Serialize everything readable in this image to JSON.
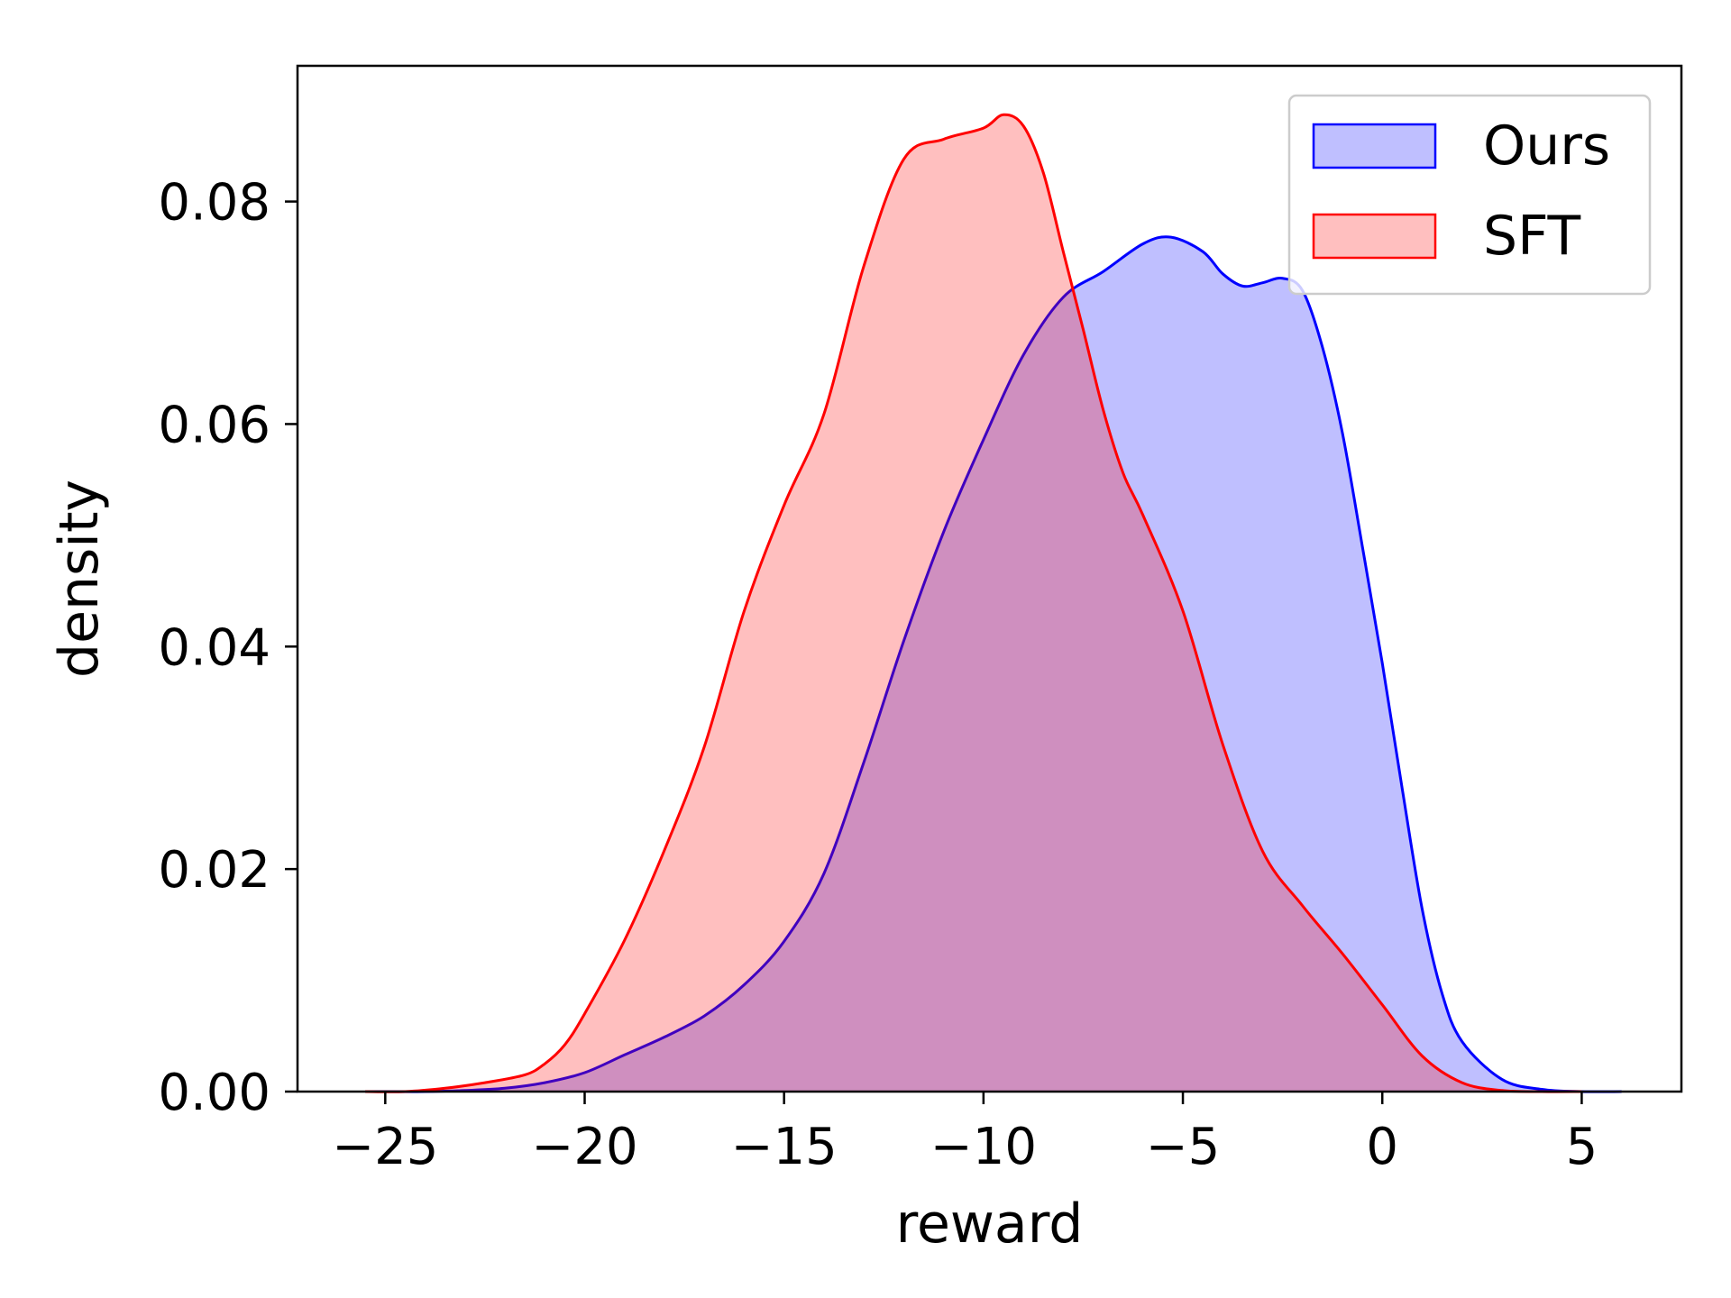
{
  "chart_data": {
    "type": "area",
    "title": "",
    "xlabel": "reward",
    "ylabel": "density",
    "xlim": [
      -27.2,
      7.5
    ],
    "ylim": [
      0,
      0.0922
    ],
    "xticks": [
      -25,
      -20,
      -15,
      -10,
      -5,
      0,
      5
    ],
    "xtick_labels": [
      "−25",
      "−20",
      "−15",
      "−10",
      "−5",
      "0",
      "5"
    ],
    "yticks": [
      0,
      0.02,
      0.04,
      0.06,
      0.08
    ],
    "ytick_labels": [
      "0.00",
      "0.02",
      "0.04",
      "0.06",
      "0.08"
    ],
    "grid": false,
    "legend_position": "top-right",
    "series": [
      {
        "name": "Ours",
        "line_color": "#0000ff",
        "fill_color": "#0000ff",
        "fill_opacity": 0.25,
        "points": [
          [
            -25.5,
            0.0
          ],
          [
            -24.0,
            0.0
          ],
          [
            -23.0,
            0.0001
          ],
          [
            -22.0,
            0.0003
          ],
          [
            -21.0,
            0.0008
          ],
          [
            -20.0,
            0.0017
          ],
          [
            -19.0,
            0.0033
          ],
          [
            -18.0,
            0.0049
          ],
          [
            -17.0,
            0.0068
          ],
          [
            -16.0,
            0.0096
          ],
          [
            -15.0,
            0.0135
          ],
          [
            -14.0,
            0.0196
          ],
          [
            -13.0,
            0.0296
          ],
          [
            -12.0,
            0.0405
          ],
          [
            -11.0,
            0.0503
          ],
          [
            -10.0,
            0.0586
          ],
          [
            -9.0,
            0.0662
          ],
          [
            -8.0,
            0.0714
          ],
          [
            -7.0,
            0.0737
          ],
          [
            -6.0,
            0.0762
          ],
          [
            -5.3,
            0.0768
          ],
          [
            -4.5,
            0.0755
          ],
          [
            -4.0,
            0.0735
          ],
          [
            -3.5,
            0.0724
          ],
          [
            -3.0,
            0.0727
          ],
          [
            -2.5,
            0.0731
          ],
          [
            -2.0,
            0.072
          ],
          [
            -1.5,
            0.0669
          ],
          [
            -1.0,
            0.0592
          ],
          [
            -0.5,
            0.049
          ],
          [
            0.0,
            0.0385
          ],
          [
            0.5,
            0.0272
          ],
          [
            1.0,
            0.0164
          ],
          [
            1.5,
            0.0088
          ],
          [
            2.0,
            0.0045
          ],
          [
            3.0,
            0.0011
          ],
          [
            4.0,
            0.0002
          ],
          [
            5.0,
            0.0
          ],
          [
            6.0,
            0.0
          ]
        ]
      },
      {
        "name": "SFT",
        "line_color": "#ff0000",
        "fill_color": "#ff0000",
        "fill_opacity": 0.25,
        "points": [
          [
            -25.5,
            0.0
          ],
          [
            -24.5,
            0.0
          ],
          [
            -23.5,
            0.0003
          ],
          [
            -22.5,
            0.0008
          ],
          [
            -21.5,
            0.0015
          ],
          [
            -21.0,
            0.0025
          ],
          [
            -20.5,
            0.0042
          ],
          [
            -20.0,
            0.007
          ],
          [
            -19.0,
            0.0136
          ],
          [
            -18.0,
            0.0217
          ],
          [
            -17.0,
            0.031
          ],
          [
            -16.0,
            0.0432
          ],
          [
            -15.0,
            0.0527
          ],
          [
            -14.0,
            0.0609
          ],
          [
            -13.0,
            0.0742
          ],
          [
            -12.0,
            0.0838
          ],
          [
            -11.0,
            0.0856
          ],
          [
            -10.0,
            0.0866
          ],
          [
            -9.5,
            0.0878
          ],
          [
            -9.0,
            0.0868
          ],
          [
            -8.5,
            0.0826
          ],
          [
            -8.0,
            0.0755
          ],
          [
            -7.5,
            0.0685
          ],
          [
            -7.0,
            0.0613
          ],
          [
            -6.5,
            0.0556
          ],
          [
            -6.0,
            0.0518
          ],
          [
            -5.0,
            0.0432
          ],
          [
            -4.0,
            0.0312
          ],
          [
            -3.0,
            0.0216
          ],
          [
            -2.0,
            0.0167
          ],
          [
            -1.0,
            0.0124
          ],
          [
            0.0,
            0.0078
          ],
          [
            1.0,
            0.0032
          ],
          [
            2.0,
            0.0008
          ],
          [
            3.0,
            0.0001
          ],
          [
            4.0,
            0.0
          ],
          [
            5.0,
            0.0
          ]
        ]
      }
    ]
  }
}
